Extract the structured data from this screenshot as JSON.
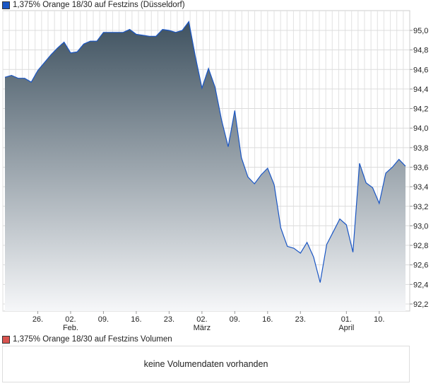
{
  "chart_data": {
    "type": "area",
    "title": "1,375% Orange 18/30 auf Festzins (Düsseldorf)",
    "series": [
      {
        "name": "1,375% Orange 18/30 auf Festzins (Düsseldorf)",
        "color": "#1a56c4",
        "values": [
          94.52,
          94.54,
          94.51,
          94.51,
          94.47,
          94.59,
          94.67,
          94.75,
          94.82,
          94.88,
          94.77,
          94.78,
          94.86,
          94.89,
          94.89,
          94.98,
          94.98,
          94.98,
          94.98,
          95.01,
          94.96,
          94.95,
          94.94,
          94.94,
          95.01,
          95.0,
          94.98,
          95.0,
          95.09,
          94.73,
          94.41,
          94.61,
          94.42,
          94.08,
          93.81,
          94.18,
          93.7,
          93.5,
          93.43,
          93.52,
          93.59,
          93.42,
          92.98,
          92.79,
          92.77,
          92.72,
          92.83,
          92.68,
          92.42,
          92.81,
          92.94,
          93.07,
          93.01,
          92.73,
          93.64,
          93.44,
          93.39,
          93.23,
          93.54,
          93.6,
          93.68,
          93.61
        ]
      }
    ],
    "ylim": [
      92.1,
      95.2
    ],
    "yticks": [
      "92,2",
      "92,4",
      "92,6",
      "92,8",
      "93,0",
      "93,2",
      "93,4",
      "93,6",
      "93,8",
      "94,0",
      "94,2",
      "94,4",
      "94,6",
      "94,8",
      "95,0"
    ],
    "ytick_values": [
      92.2,
      92.4,
      92.6,
      92.8,
      93.0,
      93.2,
      93.4,
      93.6,
      93.8,
      94.0,
      94.2,
      94.4,
      94.6,
      94.8,
      95.0
    ],
    "xticks": [
      {
        "label": "26.",
        "index": 5
      },
      {
        "label": "02.",
        "sub": "Feb.",
        "index": 10
      },
      {
        "label": "09.",
        "index": 15
      },
      {
        "label": "16.",
        "index": 20
      },
      {
        "label": "23.",
        "index": 25
      },
      {
        "label": "02.",
        "sub": "März",
        "index": 30
      },
      {
        "label": "09.",
        "index": 35
      },
      {
        "label": "16.",
        "index": 40
      },
      {
        "label": "23.",
        "index": 45
      },
      {
        "label": "01.",
        "sub": "April",
        "index": 52
      },
      {
        "label": "10.",
        "index": 57
      }
    ],
    "grid": true
  },
  "volume": {
    "legend": "1,375% Orange 18/30 auf Festzins Volumen",
    "color": "#d9534f",
    "message": "keine Volumendaten vorhanden"
  }
}
